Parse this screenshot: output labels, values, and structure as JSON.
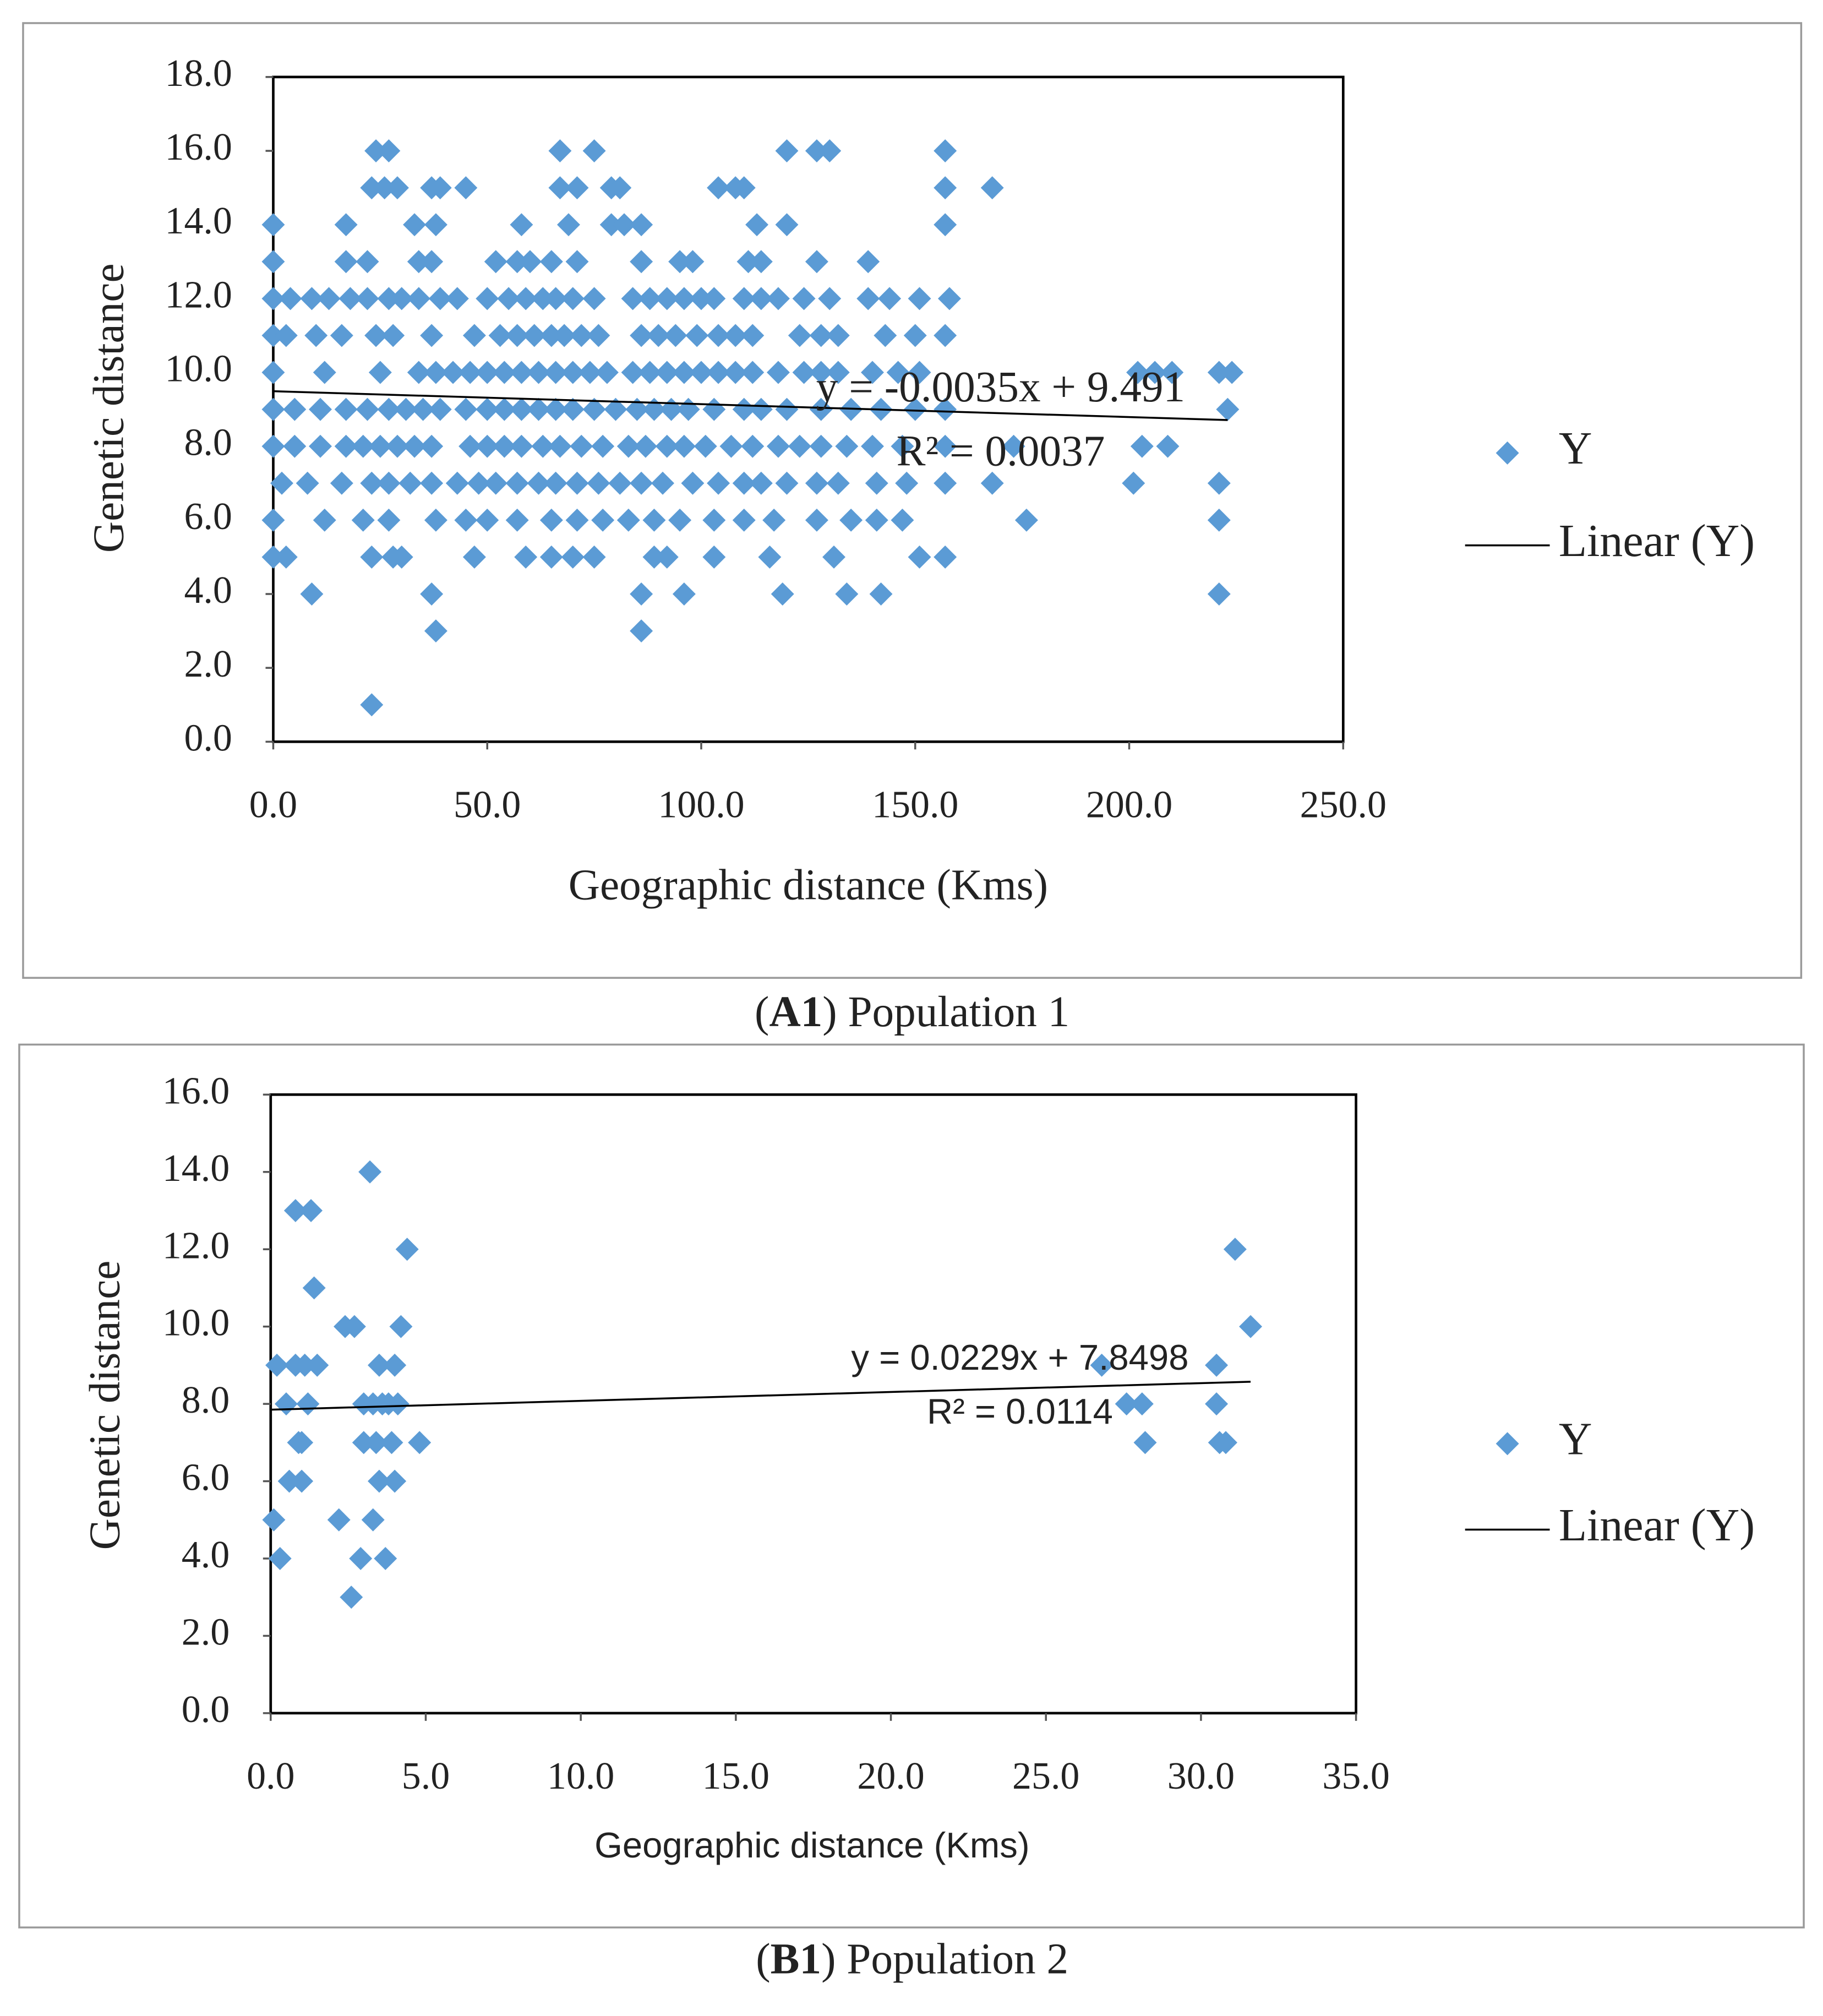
{
  "chart_data": [
    {
      "type": "scatter",
      "caption_label": "A1",
      "caption": "Population 1",
      "xlabel": "Geographic distance (Kms)",
      "ylabel": "Genetic distance",
      "xlim": [
        0,
        250
      ],
      "ylim": [
        0,
        18
      ],
      "xticks": [
        {
          "value": 0,
          "label": "0.0"
        },
        {
          "value": 50,
          "label": "50.0"
        },
        {
          "value": 100,
          "label": "100.0"
        },
        {
          "value": 150,
          "label": "150.0"
        },
        {
          "value": 200,
          "label": "200.0"
        },
        {
          "value": 250,
          "label": "250.0"
        }
      ],
      "yticks": [
        {
          "value": 0,
          "label": "0.0"
        },
        {
          "value": 2,
          "label": "2.0"
        },
        {
          "value": 4,
          "label": "4.0"
        },
        {
          "value": 6,
          "label": "6.0"
        },
        {
          "value": 8,
          "label": "8.0"
        },
        {
          "value": 10,
          "label": "10.0"
        },
        {
          "value": 12,
          "label": "12.0"
        },
        {
          "value": 14,
          "label": "14.0"
        },
        {
          "value": 16,
          "label": "16.0"
        },
        {
          "value": 18,
          "label": "18.0"
        }
      ],
      "annotations": [
        "y = -0.0035x + 9.491",
        "R² = 0.0037"
      ],
      "series": [
        {
          "name": "Y",
          "color": "#5b9bd5",
          "marker": "diamond",
          "x": [
            24,
            27,
            67,
            75,
            120,
            127,
            130,
            157,
            23,
            26,
            29,
            37,
            39,
            45,
            67,
            71,
            79,
            81,
            104,
            108,
            110,
            157,
            168,
            0,
            17,
            33,
            38,
            58,
            69,
            79,
            82,
            86,
            113,
            120,
            157,
            0,
            17,
            22,
            34,
            37,
            52,
            57,
            60,
            65,
            71,
            86,
            95,
            98,
            111,
            114,
            127,
            139,
            0,
            4,
            9,
            13,
            18,
            22,
            27,
            30,
            34,
            39,
            43,
            50,
            55,
            59,
            63,
            66,
            70,
            75,
            84,
            88,
            92,
            96,
            100,
            103,
            110,
            114,
            118,
            124,
            130,
            139,
            144,
            151,
            158,
            0,
            3,
            10,
            16,
            24,
            28,
            37,
            47,
            53,
            57,
            61,
            65,
            68,
            72,
            76,
            86,
            90,
            94,
            99,
            104,
            108,
            112,
            123,
            128,
            132,
            143,
            150,
            157,
            0,
            12,
            25,
            34,
            38,
            42,
            46,
            50,
            54,
            58,
            62,
            66,
            70,
            74,
            78,
            84,
            88,
            92,
            96,
            100,
            104,
            108,
            112,
            118,
            124,
            128,
            132,
            140,
            146,
            151,
            202,
            206,
            210,
            221,
            224,
            0,
            5,
            11,
            17,
            22,
            27,
            31,
            35,
            39,
            45,
            50,
            54,
            58,
            62,
            66,
            70,
            75,
            80,
            85,
            89,
            93,
            97,
            103,
            110,
            114,
            120,
            128,
            135,
            142,
            150,
            157,
            223,
            0,
            5,
            11,
            17,
            21,
            25,
            29,
            33,
            37,
            46,
            50,
            54,
            58,
            63,
            67,
            72,
            77,
            83,
            87,
            92,
            96,
            101,
            107,
            112,
            118,
            123,
            128,
            134,
            140,
            147,
            157,
            173,
            203,
            209,
            2,
            8,
            16,
            23,
            27,
            32,
            37,
            43,
            48,
            52,
            57,
            62,
            66,
            71,
            76,
            81,
            86,
            91,
            98,
            104,
            110,
            114,
            120,
            127,
            132,
            141,
            148,
            157,
            168,
            201,
            221,
            0,
            12,
            21,
            27,
            38,
            45,
            50,
            57,
            65,
            71,
            77,
            83,
            89,
            95,
            103,
            110,
            117,
            127,
            135,
            141,
            147,
            176,
            221,
            0,
            3,
            23,
            28,
            30,
            47,
            59,
            65,
            70,
            75,
            89,
            92,
            103,
            116,
            131,
            151,
            157,
            9,
            37,
            86,
            96,
            119,
            134,
            142,
            221,
            38,
            86,
            23
          ],
          "values": [
            16,
            16,
            16,
            16,
            16,
            16,
            16,
            16,
            15,
            15,
            15,
            15,
            15,
            15,
            15,
            15,
            15,
            15,
            15,
            15,
            15,
            15,
            15,
            14,
            14,
            14,
            14,
            14,
            14,
            14,
            14,
            14,
            14,
            14,
            14,
            13,
            13,
            13,
            13,
            13,
            13,
            13,
            13,
            13,
            13,
            13,
            13,
            13,
            13,
            13,
            13,
            13,
            12,
            12,
            12,
            12,
            12,
            12,
            12,
            12,
            12,
            12,
            12,
            12,
            12,
            12,
            12,
            12,
            12,
            12,
            12,
            12,
            12,
            12,
            12,
            12,
            12,
            12,
            12,
            12,
            12,
            12,
            12,
            12,
            12,
            11,
            11,
            11,
            11,
            11,
            11,
            11,
            11,
            11,
            11,
            11,
            11,
            11,
            11,
            11,
            11,
            11,
            11,
            11,
            11,
            11,
            11,
            11,
            11,
            11,
            11,
            11,
            11,
            10,
            10,
            10,
            10,
            10,
            10,
            10,
            10,
            10,
            10,
            10,
            10,
            10,
            10,
            10,
            10,
            10,
            10,
            10,
            10,
            10,
            10,
            10,
            10,
            10,
            10,
            10,
            10,
            10,
            10,
            10,
            10,
            10,
            10,
            10,
            9,
            9,
            9,
            9,
            9,
            9,
            9,
            9,
            9,
            9,
            9,
            9,
            9,
            9,
            9,
            9,
            9,
            9,
            9,
            9,
            9,
            9,
            9,
            9,
            9,
            9,
            9,
            9,
            9,
            9,
            9,
            9,
            8,
            8,
            8,
            8,
            8,
            8,
            8,
            8,
            8,
            8,
            8,
            8,
            8,
            8,
            8,
            8,
            8,
            8,
            8,
            8,
            8,
            8,
            8,
            8,
            8,
            8,
            8,
            8,
            8,
            8,
            8,
            8,
            8,
            8,
            7,
            7,
            7,
            7,
            7,
            7,
            7,
            7,
            7,
            7,
            7,
            7,
            7,
            7,
            7,
            7,
            7,
            7,
            7,
            7,
            7,
            7,
            7,
            7,
            7,
            7,
            7,
            7,
            7,
            7,
            7,
            6,
            6,
            6,
            6,
            6,
            6,
            6,
            6,
            6,
            6,
            6,
            6,
            6,
            6,
            6,
            6,
            6,
            6,
            6,
            6,
            6,
            6,
            6,
            5,
            5,
            5,
            5,
            5,
            5,
            5,
            5,
            5,
            5,
            5,
            5,
            5,
            5,
            5,
            5,
            5,
            4,
            4,
            4,
            4,
            4,
            4,
            4,
            4,
            3,
            3,
            1
          ]
        },
        {
          "name": "Linear (Y)",
          "color": "#000000",
          "marker": "line",
          "x": [
            0,
            223
          ],
          "values": [
            9.491,
            8.7105
          ]
        }
      ]
    },
    {
      "type": "scatter",
      "caption_label": "B1",
      "caption": "Population 2",
      "xlabel": "Geographic distance (Kms)",
      "ylabel": "Genetic distance",
      "xlim": [
        0,
        35
      ],
      "ylim": [
        0,
        16
      ],
      "xticks": [
        {
          "value": 0,
          "label": "0.0"
        },
        {
          "value": 5,
          "label": "5.0"
        },
        {
          "value": 10,
          "label": "10.0"
        },
        {
          "value": 15,
          "label": "15.0"
        },
        {
          "value": 20,
          "label": "20.0"
        },
        {
          "value": 25,
          "label": "25.0"
        },
        {
          "value": 30,
          "label": "30.0"
        },
        {
          "value": 35,
          "label": "35.0"
        }
      ],
      "yticks": [
        {
          "value": 0,
          "label": "0.0"
        },
        {
          "value": 2,
          "label": "2.0"
        },
        {
          "value": 4,
          "label": "4.0"
        },
        {
          "value": 6,
          "label": "6.0"
        },
        {
          "value": 8,
          "label": "8.0"
        },
        {
          "value": 10,
          "label": "10.0"
        },
        {
          "value": 12,
          "label": "12.0"
        },
        {
          "value": 14,
          "label": "14.0"
        },
        {
          "value": 16,
          "label": "16.0"
        }
      ],
      "annotations": [
        "y = 0.0229x + 7.8498",
        "R² = 0.0114"
      ],
      "series": [
        {
          "name": "Y",
          "color": "#5b9bd5",
          "marker": "diamond",
          "x": [
            0.1,
            0.2,
            0.3,
            0.5,
            0.6,
            0.8,
            0.8,
            0.9,
            1,
            1,
            1.1,
            1.2,
            1.3,
            1.4,
            1.5,
            2.2,
            2.4,
            2.6,
            2.7,
            2.9,
            3,
            3,
            3.2,
            3.3,
            3.3,
            3.4,
            3.5,
            3.5,
            3.6,
            3.7,
            3.8,
            3.9,
            4,
            4,
            4.1,
            4.2,
            4.4,
            4.8,
            26.8,
            27.6,
            28.1,
            28.2,
            30.5,
            30.5,
            30.6,
            30.8,
            31.1,
            31.6
          ],
          "values": [
            5,
            9,
            4,
            8,
            6,
            9,
            13,
            7,
            6,
            7,
            9,
            8,
            13,
            11,
            9,
            5,
            10,
            3,
            10,
            4,
            8,
            7,
            14,
            5,
            8,
            7,
            9,
            6,
            8,
            4,
            8,
            7,
            9,
            6,
            8,
            10,
            12,
            7,
            9,
            8,
            8,
            7,
            9,
            8,
            7,
            7,
            12,
            10
          ]
        },
        {
          "name": "Linear (Y)",
          "color": "#000000",
          "marker": "line",
          "x": [
            0,
            31.6
          ],
          "values": [
            7.8498,
            8.5734
          ]
        }
      ]
    }
  ]
}
